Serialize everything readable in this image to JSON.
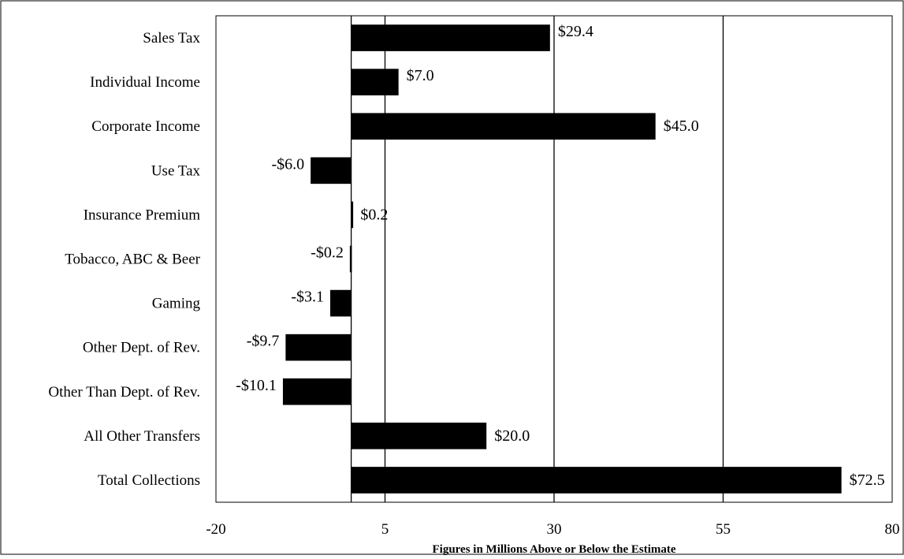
{
  "chart_data": {
    "type": "bar",
    "orientation": "horizontal",
    "categories": [
      "Sales Tax",
      "Individual Income",
      "Corporate Income",
      "Use Tax",
      "Insurance Premium",
      "Tobacco, ABC & Beer",
      "Gaming",
      "Other Dept. of Rev.",
      "Other Than Dept. of Rev.",
      "All Other Transfers",
      "Total Collections"
    ],
    "values": [
      29.4,
      7.0,
      45.0,
      -6.0,
      0.2,
      -0.2,
      -3.1,
      -9.7,
      -10.1,
      20.0,
      72.5
    ],
    "data_labels": [
      "$29.4",
      "$7.0",
      "$45.0",
      "-$6.0",
      "$0.2",
      "-$0.2",
      "-$3.1",
      "-$9.7",
      "-$10.1",
      "$20.0",
      "$72.5"
    ],
    "xlabel": "Figures in Millions Above or Below the Estimate",
    "xlim": [
      -20,
      80
    ],
    "x_ticks": [
      -20,
      5,
      30,
      55,
      80
    ],
    "x_tick_labels": [
      "-20",
      "5",
      "30",
      "55",
      "80"
    ],
    "gridlines_x": [
      5,
      30,
      55
    ],
    "bar_color": "#000000",
    "grid": true,
    "legend": "none"
  }
}
